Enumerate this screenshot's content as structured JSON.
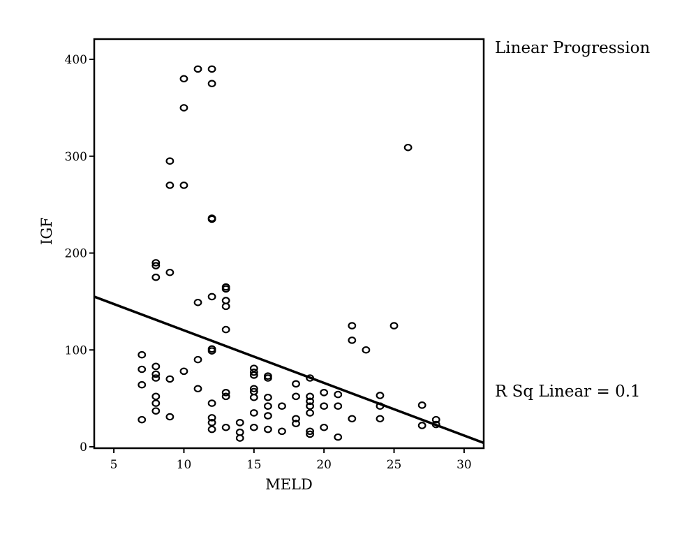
{
  "chart_data": {
    "type": "scatter",
    "title": "",
    "xlabel": "MELD",
    "ylabel": "IGF",
    "xlim": [
      3.6,
      31.4
    ],
    "ylim": [
      0,
      420
    ],
    "x_ticks": [
      5,
      10,
      15,
      20,
      25,
      30
    ],
    "y_ticks": [
      0,
      100,
      200,
      300,
      400
    ],
    "grid": false,
    "annotations": {
      "fit_title": "Linear Progression",
      "r_squared": "R Sq Linear = 0.1"
    },
    "fit_line": {
      "type": "linear",
      "points": [
        [
          3.6,
          155
        ],
        [
          31.4,
          4
        ]
      ]
    },
    "points": [
      [
        7,
        95
      ],
      [
        7,
        80
      ],
      [
        7,
        64
      ],
      [
        7,
        28
      ],
      [
        8,
        190
      ],
      [
        8,
        187
      ],
      [
        8,
        175
      ],
      [
        8,
        83
      ],
      [
        8,
        75
      ],
      [
        8,
        71
      ],
      [
        8,
        52
      ],
      [
        8,
        45
      ],
      [
        8,
        37
      ],
      [
        9,
        295
      ],
      [
        9,
        270
      ],
      [
        9,
        180
      ],
      [
        9,
        70
      ],
      [
        9,
        31
      ],
      [
        10,
        380
      ],
      [
        10,
        350
      ],
      [
        10,
        270
      ],
      [
        10,
        78
      ],
      [
        11,
        390
      ],
      [
        11,
        149
      ],
      [
        11,
        90
      ],
      [
        11,
        60
      ],
      [
        12,
        390
      ],
      [
        12,
        375
      ],
      [
        12,
        236
      ],
      [
        12,
        235
      ],
      [
        12,
        155
      ],
      [
        12,
        101
      ],
      [
        12,
        99
      ],
      [
        12,
        45
      ],
      [
        12,
        30
      ],
      [
        12,
        25
      ],
      [
        12,
        18
      ],
      [
        13,
        165
      ],
      [
        13,
        163
      ],
      [
        13,
        151
      ],
      [
        13,
        145
      ],
      [
        13,
        121
      ],
      [
        13,
        56
      ],
      [
        13,
        52
      ],
      [
        13,
        20
      ],
      [
        14,
        25
      ],
      [
        14,
        15
      ],
      [
        14,
        9
      ],
      [
        15,
        81
      ],
      [
        15,
        77
      ],
      [
        15,
        74
      ],
      [
        15,
        60
      ],
      [
        15,
        57
      ],
      [
        15,
        51
      ],
      [
        15,
        35
      ],
      [
        15,
        20
      ],
      [
        16,
        73
      ],
      [
        16,
        71
      ],
      [
        16,
        51
      ],
      [
        16,
        42
      ],
      [
        16,
        32
      ],
      [
        16,
        18
      ],
      [
        17,
        42
      ],
      [
        17,
        16
      ],
      [
        18,
        65
      ],
      [
        18,
        52
      ],
      [
        18,
        29
      ],
      [
        18,
        24
      ],
      [
        19,
        71
      ],
      [
        19,
        52
      ],
      [
        19,
        47
      ],
      [
        19,
        42
      ],
      [
        19,
        35
      ],
      [
        19,
        16
      ],
      [
        19,
        13
      ],
      [
        20,
        56
      ],
      [
        20,
        42
      ],
      [
        20,
        20
      ],
      [
        21,
        54
      ],
      [
        21,
        42
      ],
      [
        21,
        10
      ],
      [
        22,
        125
      ],
      [
        22,
        110
      ],
      [
        22,
        29
      ],
      [
        23,
        100
      ],
      [
        24,
        53
      ],
      [
        24,
        42
      ],
      [
        24,
        29
      ],
      [
        25,
        125
      ],
      [
        26,
        309
      ],
      [
        27,
        43
      ],
      [
        27,
        22
      ],
      [
        28,
        28
      ],
      [
        28,
        23
      ]
    ]
  }
}
